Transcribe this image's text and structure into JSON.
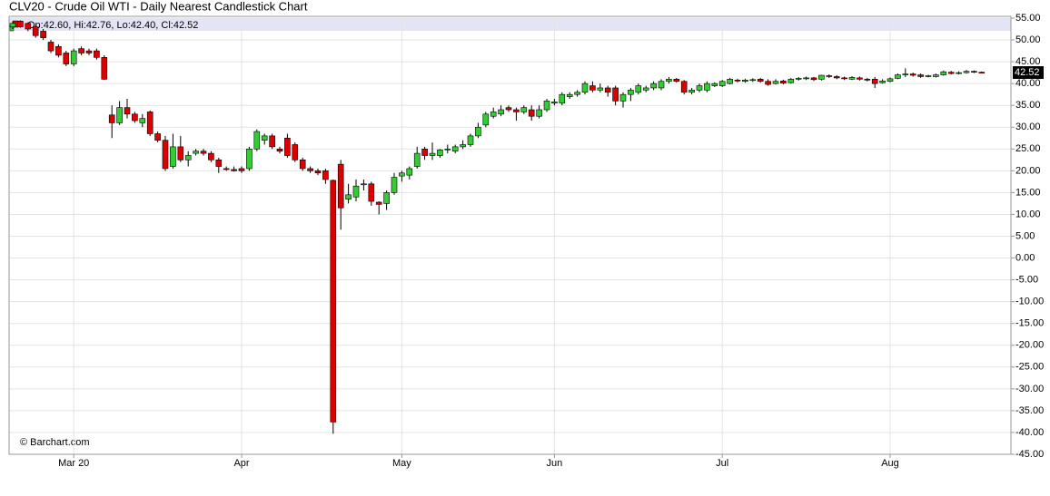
{
  "chart_data": {
    "type": "candlestick",
    "title": "CLV20 - Crude Oil WTI - Daily Nearest Candlestick Chart",
    "info_text": "Op:42.60, Hi:42.76, Lo:42.40, Cl:42.52",
    "credit": "© Barchart.com",
    "categories": [
      null,
      null,
      null,
      null,
      null,
      null,
      null,
      null,
      "Mar 20",
      null,
      null,
      null,
      null,
      null,
      null,
      null,
      null,
      null,
      null,
      null,
      null,
      null,
      null,
      null,
      null,
      null,
      null,
      null,
      null,
      null,
      "Apr",
      null,
      null,
      null,
      null,
      null,
      null,
      null,
      null,
      null,
      null,
      null,
      null,
      null,
      null,
      null,
      null,
      null,
      null,
      null,
      null,
      "May",
      null,
      null,
      null,
      null,
      null,
      null,
      null,
      null,
      null,
      null,
      null,
      null,
      null,
      null,
      null,
      null,
      null,
      null,
      null,
      "Jun",
      null,
      null,
      null,
      null,
      null,
      null,
      null,
      null,
      null,
      null,
      null,
      null,
      null,
      null,
      null,
      null,
      null,
      null,
      null,
      null,
      null,
      "Jul",
      null,
      null,
      null,
      null,
      null,
      null,
      null,
      null,
      null,
      null,
      null,
      null,
      null,
      null,
      null,
      null,
      null,
      null,
      null,
      null,
      null,
      "Aug",
      null,
      null,
      null,
      null,
      null,
      null,
      null,
      null,
      null,
      null,
      null,
      null
    ],
    "open": [
      53,
      54.3,
      53.8,
      53,
      52,
      49.5,
      48.5,
      47,
      44.5,
      48,
      47.5,
      47.5,
      46,
      32.8,
      31,
      34.5,
      33,
      31,
      33.5,
      28.5,
      27,
      21,
      25.5,
      22.5,
      24,
      24.5,
      24,
      22.5,
      20.5,
      20.3,
      20.5,
      20.5,
      25,
      27,
      28,
      25,
      27.5,
      26,
      22.5,
      20.5,
      20,
      20,
      17.8,
      21.5,
      13.5,
      14,
      16.8,
      17,
      12.8,
      12.5,
      15,
      18.8,
      19,
      21,
      25,
      23.5,
      23.5,
      24.8,
      24.5,
      25.5,
      26,
      28,
      30.5,
      32.5,
      33,
      34.5,
      34,
      33.5,
      34,
      32.5,
      34,
      35.5,
      35.5,
      37,
      37.5,
      38,
      39.5,
      38.5,
      39,
      39,
      36,
      37.5,
      38,
      38.5,
      39,
      39,
      40.5,
      41,
      40.5,
      38,
      38.5,
      38.5,
      39.5,
      39.5,
      40,
      40.8,
      40.5,
      40.7,
      41,
      40.5,
      40,
      40.6,
      40.2,
      41,
      41.1,
      41.3,
      41,
      41.8,
      41.6,
      41.3,
      41,
      41.3,
      41,
      41,
      40.2,
      40.5,
      41.2,
      42,
      42.2,
      42,
      41.6,
      41.6,
      42,
      42.6,
      42.3,
      42.5,
      42.8,
      42.6
    ],
    "high": [
      54.2,
      54.5,
      54,
      53.5,
      52.5,
      50,
      49,
      47.5,
      48,
      48.5,
      48,
      48,
      46.5,
      35,
      36,
      36.5,
      33.5,
      33,
      33.8,
      29,
      28,
      28.5,
      28,
      24.5,
      25,
      25,
      24.5,
      23,
      21,
      21,
      21,
      25.5,
      29.5,
      28.5,
      28.5,
      25.5,
      28.5,
      26.5,
      23,
      21,
      20.5,
      20.5,
      18,
      22.5,
      17,
      18,
      18,
      17.5,
      13,
      15.5,
      19.5,
      20,
      21,
      25.5,
      25.5,
      26.5,
      25,
      26,
      26,
      27,
      28.5,
      31,
      33.5,
      34.5,
      35,
      35,
      34.5,
      35,
      35,
      35,
      36.5,
      36.5,
      38,
      38,
      38.5,
      40.5,
      40.5,
      40,
      39.5,
      39.5,
      38,
      39,
      40,
      39.5,
      40.5,
      41,
      41.5,
      41.3,
      40.8,
      39,
      40,
      40.5,
      40.3,
      40.8,
      41.3,
      41.1,
      41.1,
      41.2,
      41.3,
      41,
      41,
      40.9,
      41.3,
      41.5,
      41.6,
      41.5,
      42,
      42.1,
      41.9,
      41.6,
      41.7,
      41.6,
      41.3,
      41.5,
      41,
      41.4,
      42.3,
      43.5,
      42.5,
      42.3,
      42,
      42.3,
      43,
      42.9,
      42.8,
      43.1,
      43,
      42.76
    ],
    "low": [
      52.5,
      52.8,
      52,
      50.5,
      50,
      47,
      46,
      44,
      44,
      46.5,
      46.5,
      45.5,
      40.8,
      27.5,
      30.5,
      32,
      31,
      30,
      28,
      26.5,
      20,
      20.5,
      22,
      21,
      23.5,
      23.5,
      22,
      19.5,
      20,
      19.8,
      19.5,
      20,
      24.5,
      26,
      25,
      24,
      23,
      22,
      20,
      19.5,
      19,
      17,
      -40.3,
      6.5,
      12.5,
      13,
      15.5,
      12,
      10,
      11,
      14.5,
      17.5,
      18,
      20.5,
      22.5,
      22.5,
      23,
      24,
      24,
      25,
      25.5,
      27.5,
      30,
      32,
      32.5,
      33.5,
      31.5,
      33,
      31.5,
      32,
      33.5,
      35,
      35,
      36.5,
      37,
      37.5,
      38,
      38,
      37,
      35,
      34.5,
      36,
      37.5,
      38,
      38.5,
      38.5,
      40,
      40.2,
      37.5,
      37.5,
      38,
      38,
      39.2,
      39.2,
      39.8,
      40.3,
      40.2,
      40.4,
      40.2,
      39.5,
      39.8,
      39.8,
      40,
      40.7,
      40.8,
      40.6,
      40.7,
      41.3,
      41,
      40.8,
      40.8,
      40.7,
      40.5,
      39,
      40,
      40.3,
      41,
      41.5,
      41.6,
      41.3,
      41.4,
      41.4,
      41.8,
      42.1,
      42.1,
      42.3,
      42.4,
      42.4
    ],
    "close": [
      53.8,
      53,
      52.5,
      51,
      50.5,
      47.5,
      46.5,
      44.5,
      47.5,
      47,
      47,
      46,
      41,
      31,
      34.5,
      33,
      31.5,
      32,
      28.5,
      27,
      20.5,
      25.5,
      22.5,
      23.5,
      24.5,
      24,
      22.5,
      21,
      20.3,
      20,
      20,
      25,
      29,
      28,
      25.5,
      24.5,
      23.5,
      22.5,
      20.5,
      20,
      19.5,
      18,
      -37.6,
      11.5,
      14.5,
      16.5,
      17,
      13,
      12.3,
      15,
      18.5,
      19.5,
      20.5,
      24,
      23.5,
      24,
      24.8,
      25,
      25.5,
      26,
      28,
      30,
      33,
      33.5,
      34,
      34,
      33.5,
      34.5,
      32.5,
      34,
      36,
      35.8,
      37.5,
      37.5,
      38,
      40,
      38.5,
      39,
      38,
      36,
      37.5,
      38.5,
      39.5,
      39,
      40,
      40.5,
      41,
      40.5,
      38,
      38.5,
      39.5,
      40,
      40,
      40.5,
      41,
      40.6,
      40.8,
      40.9,
      40.5,
      39.8,
      40.5,
      40.1,
      41,
      41.2,
      41.3,
      40.9,
      41.9,
      41.6,
      41.3,
      41.1,
      41.4,
      41,
      40.9,
      40,
      40.6,
      41.1,
      42,
      42.2,
      41.9,
      41.6,
      41.8,
      42,
      42.7,
      42.3,
      42.5,
      42.8,
      42.6,
      42.52
    ],
    "up_color": "#33cc33",
    "down_color": "#dd0000",
    "ylim": [
      -45,
      55
    ],
    "yticks": [
      {
        "value": 55,
        "label": "55.00"
      },
      {
        "value": 50,
        "label": "50.00"
      },
      {
        "value": 45,
        "label": "45.00"
      },
      {
        "value": 40,
        "label": "40.00"
      },
      {
        "value": 35,
        "label": "35.00"
      },
      {
        "value": 30,
        "label": "30.00"
      },
      {
        "value": 25,
        "label": "25.00"
      },
      {
        "value": 20,
        "label": "20.00"
      },
      {
        "value": 15,
        "label": "15.00"
      },
      {
        "value": 10,
        "label": "10.00"
      },
      {
        "value": 5,
        "label": "5.00"
      },
      {
        "value": 0,
        "label": "0.00"
      },
      {
        "value": -5,
        "label": "-5.00"
      },
      {
        "value": -10,
        "label": "-10.00"
      },
      {
        "value": -15,
        "label": "-15.00"
      },
      {
        "value": -20,
        "label": "-20.00"
      },
      {
        "value": -25,
        "label": "-25.00"
      },
      {
        "value": -30,
        "label": "-30.00"
      },
      {
        "value": -35,
        "label": "-35.00"
      },
      {
        "value": -40,
        "label": "-40.00"
      },
      {
        "value": -45,
        "label": "-45.00"
      }
    ],
    "grid": true
  }
}
